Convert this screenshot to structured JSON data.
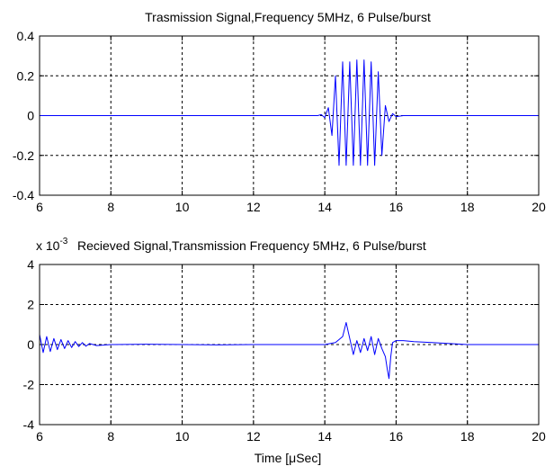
{
  "chart_data": [
    {
      "type": "line",
      "title": "Trasmission Signal,Frequency 5MHz, 6 Pulse/burst",
      "xlabel": "",
      "ylabel": "",
      "xlim": [
        6,
        20
      ],
      "ylim": [
        -0.4,
        0.4
      ],
      "xticks": [
        "6",
        "8",
        "10",
        "12",
        "14",
        "16",
        "18",
        "20"
      ],
      "yticks": [
        "0.4",
        "0.2",
        "0",
        "-0.2",
        "-0.4"
      ],
      "grid": true,
      "color": "#0000ff",
      "series": [
        {
          "x": [
            6,
            13.8,
            13.9,
            14.0,
            14.1,
            14.2,
            14.3,
            14.4,
            14.5,
            14.6,
            14.7,
            14.8,
            14.9,
            15.0,
            15.1,
            15.2,
            15.3,
            15.4,
            15.5,
            15.6,
            15.7,
            15.8,
            15.9,
            16.0,
            16.2,
            20
          ],
          "y": [
            0,
            0,
            0.005,
            -0.01,
            0.04,
            -0.1,
            0.2,
            -0.25,
            0.27,
            -0.25,
            0.27,
            -0.25,
            0.28,
            -0.25,
            0.28,
            -0.25,
            0.27,
            -0.25,
            0.22,
            -0.2,
            0.05,
            -0.03,
            0.01,
            -0.005,
            0,
            0
          ]
        }
      ]
    },
    {
      "type": "line",
      "title": "Recieved Signal,Transmission Frequency 5MHz, 6 Pulse/burst",
      "scale_label": "x 10",
      "scale_exponent": "-3",
      "xlabel": "Time [μSec]",
      "ylabel": "",
      "xlim": [
        6,
        20
      ],
      "ylim": [
        -4,
        4
      ],
      "xticks": [
        "6",
        "8",
        "10",
        "12",
        "14",
        "16",
        "18",
        "20"
      ],
      "yticks": [
        "4",
        "2",
        "0",
        "-2",
        "-4"
      ],
      "grid": true,
      "color": "#0000ff",
      "series": [
        {
          "x": [
            6.0,
            6.1,
            6.2,
            6.3,
            6.4,
            6.5,
            6.6,
            6.7,
            6.8,
            6.9,
            7.0,
            7.1,
            7.2,
            7.3,
            7.4,
            7.6,
            8.0,
            9.0,
            10.0,
            11.0,
            12.0,
            13.0,
            14.0,
            14.3,
            14.5,
            14.6,
            14.7,
            14.8,
            14.9,
            15.0,
            15.1,
            15.2,
            15.3,
            15.4,
            15.5,
            15.6,
            15.7,
            15.75,
            15.8,
            15.85,
            15.9,
            16.0,
            16.2,
            16.5,
            17.0,
            17.5,
            18.0,
            19.0,
            20.0
          ],
          "y": [
            0.5,
            -0.4,
            0.4,
            -0.35,
            0.3,
            -0.25,
            0.25,
            -0.2,
            0.2,
            -0.15,
            0.15,
            -0.1,
            0.1,
            -0.08,
            0.05,
            -0.05,
            0.0,
            0.02,
            0.0,
            -0.02,
            0.0,
            0.0,
            0.0,
            0.1,
            0.4,
            1.1,
            0.3,
            -0.5,
            0.2,
            -0.4,
            0.3,
            -0.3,
            0.4,
            -0.5,
            0.3,
            -0.2,
            -0.6,
            -1.2,
            -1.7,
            -0.6,
            0.1,
            0.2,
            0.2,
            0.15,
            0.1,
            0.05,
            0.0,
            0.0,
            0.0
          ]
        }
      ]
    }
  ]
}
